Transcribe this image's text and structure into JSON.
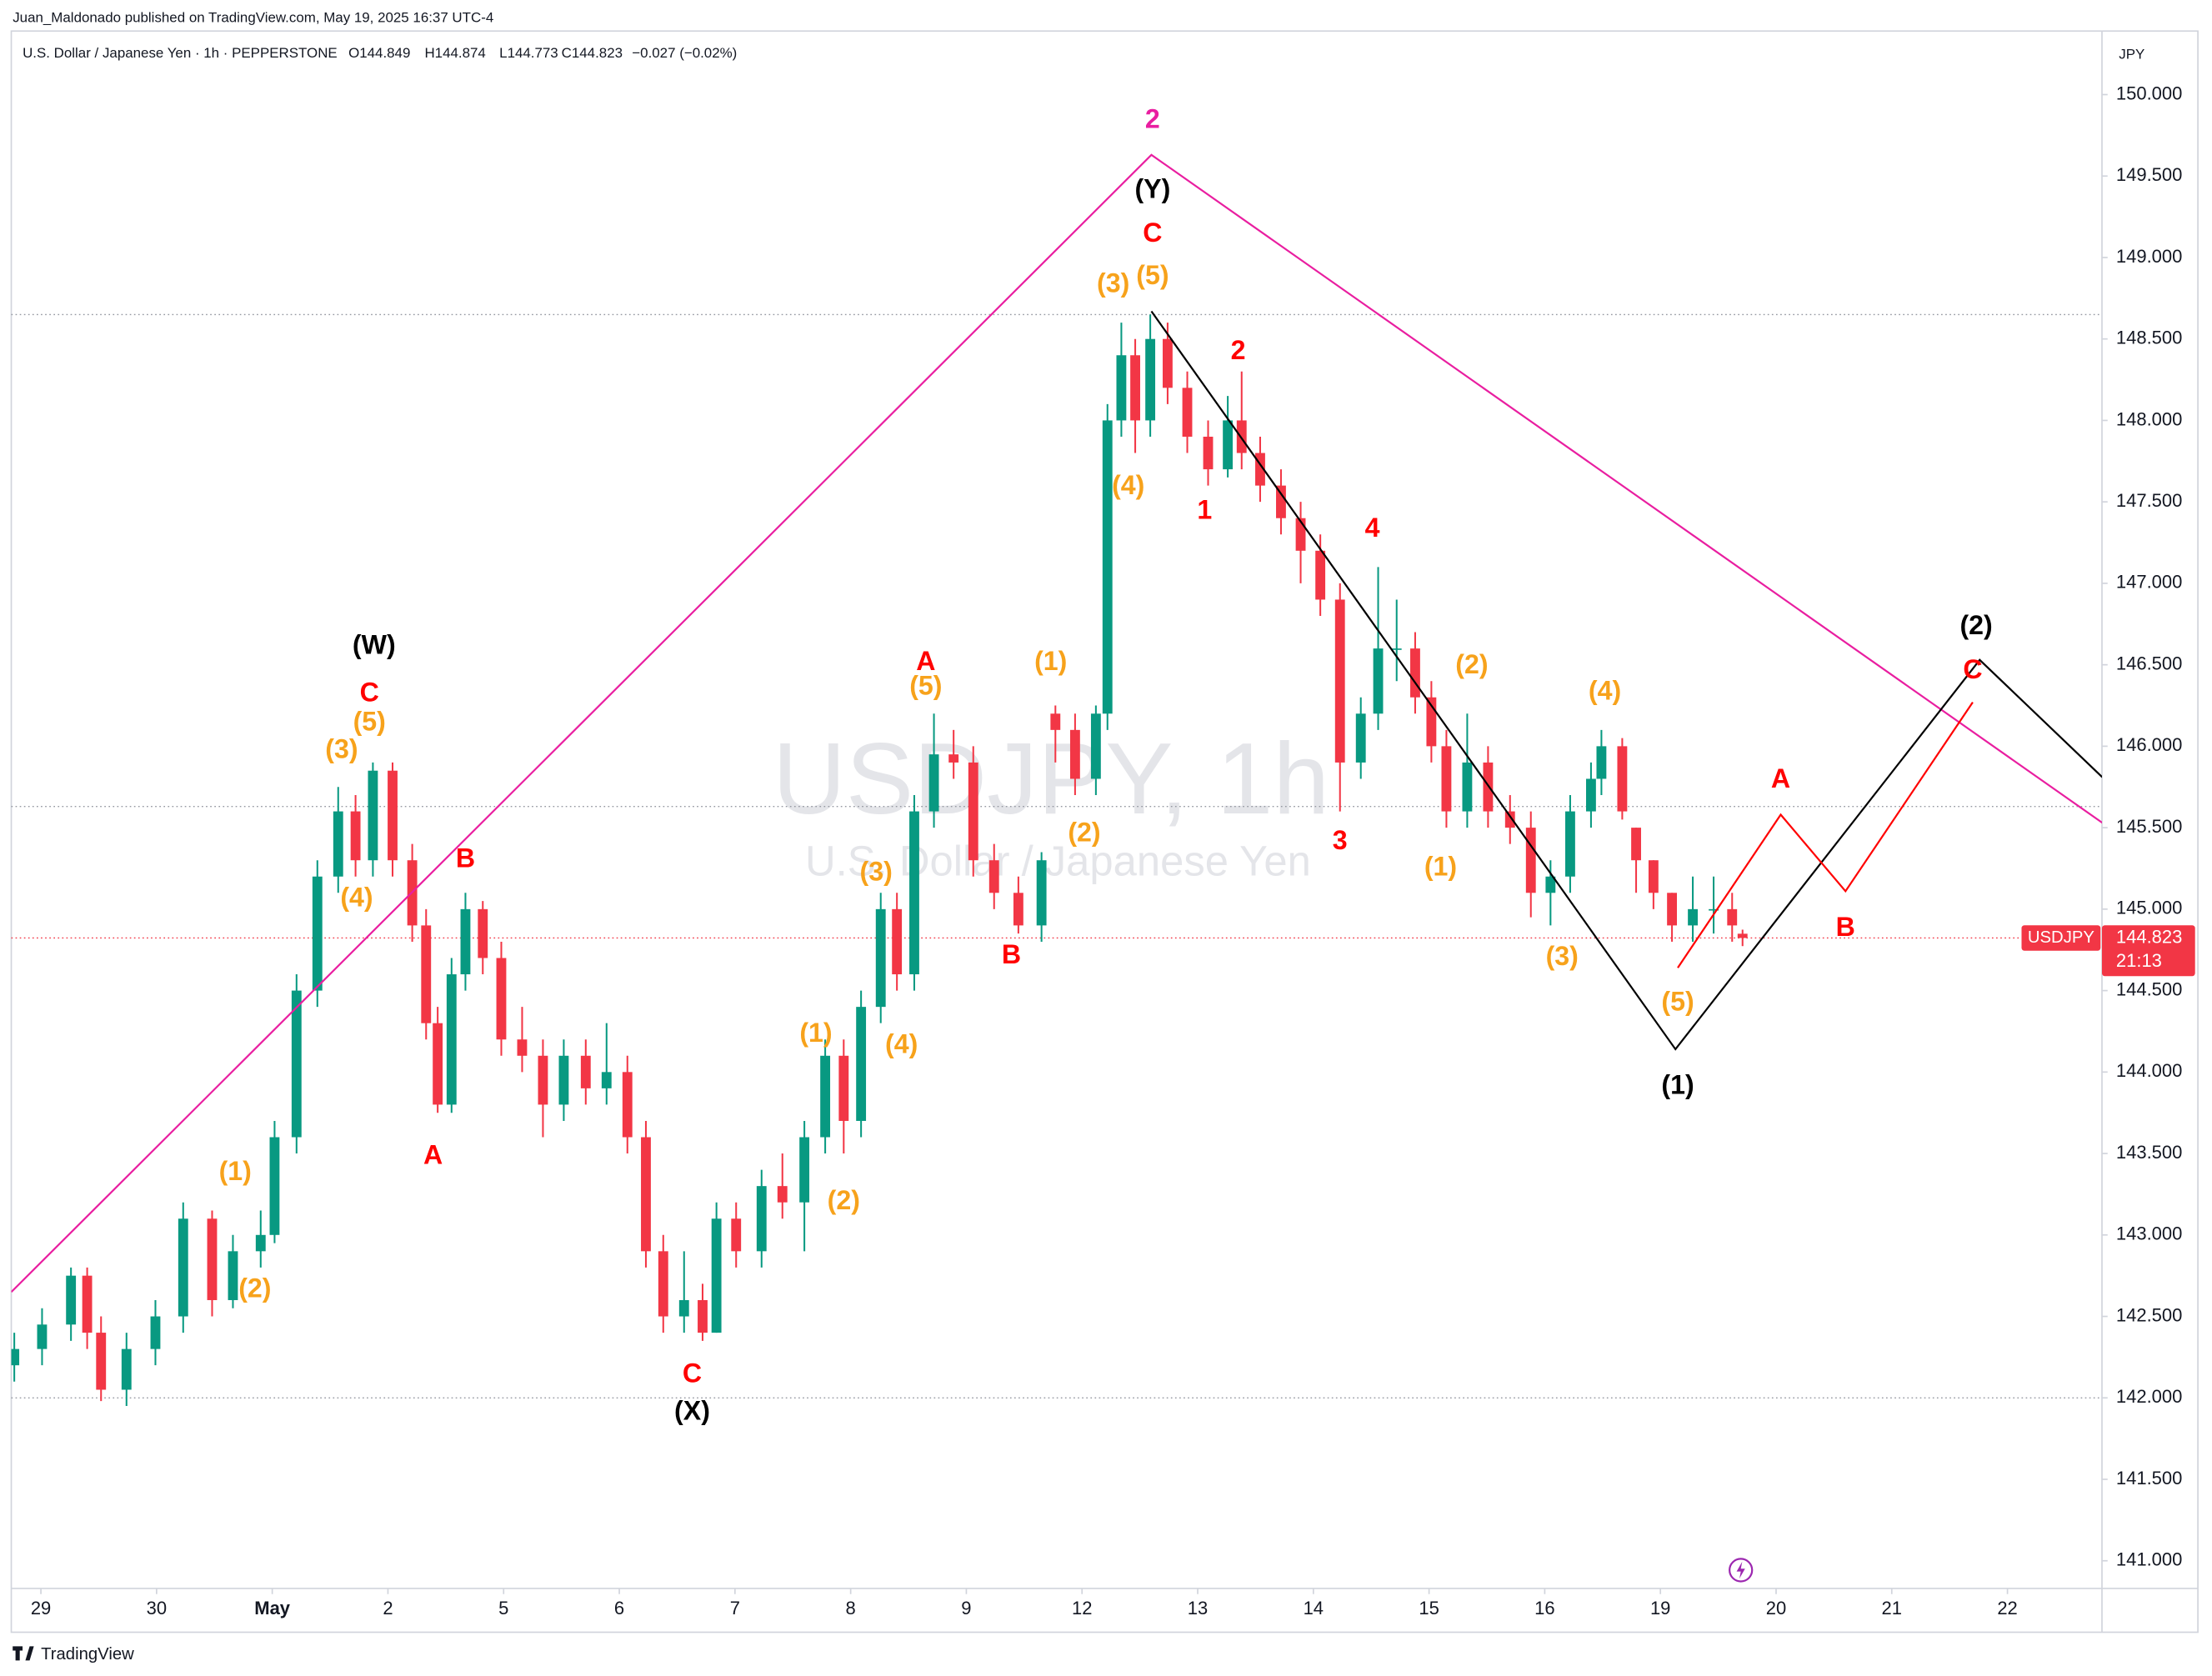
{
  "header": {
    "publisher": "Juan_Maldonado published on TradingView.com, May 19, 2025 16:37 UTC-4",
    "symbol": "U.S. Dollar / Japanese Yen · 1h · PEPPERSTONE",
    "open": "O144.849",
    "high": "H144.874",
    "low": "L144.773",
    "close": "C144.823",
    "change": "−0.027 (−0.02%)"
  },
  "watermark": {
    "title": "USDJPY, 1h",
    "subtitle": "U.S. Dollar / Japanese Yen"
  },
  "footer": {
    "brand": "TradingView"
  },
  "chart_data": {
    "type": "candlestick",
    "currency": "JPY",
    "up_color": "#089981",
    "down_color": "#f23645",
    "xlim": [
      -0.256,
      17.817
    ],
    "ylim": [
      140.83,
      150.39
    ],
    "xticks": [
      {
        "value": 0,
        "label": "29"
      },
      {
        "value": 1,
        "label": "30"
      },
      {
        "value": 2,
        "label": "May"
      },
      {
        "value": 3,
        "label": "2"
      },
      {
        "value": 4,
        "label": "5"
      },
      {
        "value": 5,
        "label": "6"
      },
      {
        "value": 6,
        "label": "7"
      },
      {
        "value": 7,
        "label": "8"
      },
      {
        "value": 8,
        "label": "9"
      },
      {
        "value": 9,
        "label": "12"
      },
      {
        "value": 10,
        "label": "13"
      },
      {
        "value": 11,
        "label": "14"
      },
      {
        "value": 12,
        "label": "15"
      },
      {
        "value": 13,
        "label": "16"
      },
      {
        "value": 14,
        "label": "19"
      },
      {
        "value": 15,
        "label": "20"
      },
      {
        "value": 16,
        "label": "21"
      },
      {
        "value": 17,
        "label": "22"
      }
    ],
    "yticks": [
      {
        "value": 141,
        "label": "141.000"
      },
      {
        "value": 141.5,
        "label": "141.500"
      },
      {
        "value": 142,
        "label": "142.000"
      },
      {
        "value": 142.5,
        "label": "142.500"
      },
      {
        "value": 143,
        "label": "143.000"
      },
      {
        "value": 143.5,
        "label": "143.500"
      },
      {
        "value": 144,
        "label": "144.000"
      },
      {
        "value": 144.5,
        "label": "144.500"
      },
      {
        "value": 145,
        "label": "145.000"
      },
      {
        "value": 145.5,
        "label": "145.500"
      },
      {
        "value": 146,
        "label": "146.000"
      },
      {
        "value": 146.5,
        "label": "146.500"
      },
      {
        "value": 147,
        "label": "147.000"
      },
      {
        "value": 147.5,
        "label": "147.500"
      },
      {
        "value": 148,
        "label": "148.000"
      },
      {
        "value": 148.5,
        "label": "148.500"
      },
      {
        "value": 149,
        "label": "149.000"
      },
      {
        "value": 149.5,
        "label": "149.500"
      },
      {
        "value": 150,
        "label": "150.000"
      }
    ],
    "x": [
      -0.23,
      0.01,
      0.26,
      0.4,
      0.52,
      0.74,
      0.99,
      1.23,
      1.48,
      1.66,
      1.9,
      2.02,
      2.21,
      2.39,
      2.57,
      2.72,
      2.87,
      3.04,
      3.21,
      3.33,
      3.43,
      3.55,
      3.67,
      3.82,
      3.98,
      4.16,
      4.34,
      4.52,
      4.71,
      4.89,
      5.07,
      5.23,
      5.38,
      5.56,
      5.72,
      5.84,
      6.01,
      6.23,
      6.41,
      6.6,
      6.78,
      6.94,
      7.09,
      7.26,
      7.4,
      7.55,
      7.72,
      7.89,
      8.06,
      8.24,
      8.45,
      8.65,
      8.77,
      8.94,
      9.12,
      9.22,
      9.34,
      9.46,
      9.59,
      9.74,
      9.91,
      10.09,
      10.26,
      10.38,
      10.54,
      10.72,
      10.89,
      11.06,
      11.23,
      11.41,
      11.56,
      11.72,
      11.88,
      12.02,
      12.15,
      12.33,
      12.51,
      12.7,
      12.88,
      13.05,
      13.22,
      13.4,
      13.49,
      13.67,
      13.79,
      13.94,
      14.1,
      14.28,
      14.46,
      14.62,
      14.71
    ],
    "ohlc": [
      [
        142.2,
        142.4,
        142.1,
        142.3
      ],
      [
        142.3,
        142.55,
        142.2,
        142.45
      ],
      [
        142.45,
        142.8,
        142.35,
        142.75
      ],
      [
        142.75,
        142.8,
        142.3,
        142.4
      ],
      [
        142.4,
        142.5,
        141.98,
        142.05
      ],
      [
        142.05,
        142.4,
        141.95,
        142.3
      ],
      [
        142.3,
        142.6,
        142.2,
        142.5
      ],
      [
        142.5,
        143.2,
        142.4,
        143.1
      ],
      [
        143.1,
        143.15,
        142.5,
        142.6
      ],
      [
        142.6,
        143.0,
        142.55,
        142.9
      ],
      [
        142.9,
        143.15,
        142.8,
        143.0
      ],
      [
        143.0,
        143.7,
        142.95,
        143.6
      ],
      [
        143.6,
        144.6,
        143.5,
        144.5
      ],
      [
        144.5,
        145.3,
        144.4,
        145.2
      ],
      [
        145.2,
        145.75,
        145.1,
        145.6
      ],
      [
        145.6,
        145.7,
        145.2,
        145.3
      ],
      [
        145.3,
        145.9,
        145.2,
        145.85
      ],
      [
        145.85,
        145.9,
        145.2,
        145.3
      ],
      [
        145.3,
        145.4,
        144.8,
        144.9
      ],
      [
        144.9,
        145.0,
        144.2,
        144.3
      ],
      [
        144.3,
        144.4,
        143.75,
        143.8
      ],
      [
        143.8,
        144.7,
        143.75,
        144.6
      ],
      [
        144.6,
        145.1,
        144.5,
        145.0
      ],
      [
        145.0,
        145.05,
        144.6,
        144.7
      ],
      [
        144.7,
        144.8,
        144.1,
        144.2
      ],
      [
        144.2,
        144.4,
        144.0,
        144.1
      ],
      [
        144.1,
        144.2,
        143.6,
        143.8
      ],
      [
        143.8,
        144.2,
        143.7,
        144.1
      ],
      [
        144.1,
        144.2,
        143.8,
        143.9
      ],
      [
        143.9,
        144.3,
        143.8,
        144.0
      ],
      [
        144.0,
        144.1,
        143.5,
        143.6
      ],
      [
        143.6,
        143.7,
        142.8,
        142.9
      ],
      [
        142.9,
        143.0,
        142.4,
        142.5
      ],
      [
        142.5,
        142.9,
        142.4,
        142.6
      ],
      [
        142.6,
        142.7,
        142.35,
        142.4
      ],
      [
        142.4,
        143.2,
        142.4,
        143.1
      ],
      [
        143.1,
        143.2,
        142.8,
        142.9
      ],
      [
        142.9,
        143.4,
        142.8,
        143.3
      ],
      [
        143.3,
        143.5,
        143.1,
        143.2
      ],
      [
        143.2,
        143.7,
        142.9,
        143.6
      ],
      [
        143.6,
        144.2,
        143.5,
        144.1
      ],
      [
        144.1,
        144.2,
        143.5,
        143.7
      ],
      [
        143.7,
        144.5,
        143.6,
        144.4
      ],
      [
        144.4,
        145.1,
        144.3,
        145.0
      ],
      [
        145.0,
        145.1,
        144.5,
        144.6
      ],
      [
        144.6,
        145.7,
        144.5,
        145.6
      ],
      [
        145.6,
        146.2,
        145.5,
        145.95
      ],
      [
        145.95,
        146.1,
        145.8,
        145.9
      ],
      [
        145.9,
        146.0,
        145.2,
        145.3
      ],
      [
        145.3,
        145.4,
        145.0,
        145.1
      ],
      [
        145.1,
        145.2,
        144.85,
        144.9
      ],
      [
        144.9,
        145.35,
        144.8,
        145.3
      ],
      [
        146.2,
        146.25,
        145.9,
        146.1
      ],
      [
        146.1,
        146.2,
        145.7,
        145.8
      ],
      [
        145.8,
        146.25,
        145.7,
        146.2
      ],
      [
        146.2,
        148.1,
        146.1,
        148.0
      ],
      [
        148.0,
        148.6,
        147.9,
        148.4
      ],
      [
        148.4,
        148.5,
        147.8,
        148.0
      ],
      [
        148.0,
        148.65,
        147.9,
        148.5
      ],
      [
        148.5,
        148.6,
        148.1,
        148.2
      ],
      [
        148.2,
        148.3,
        147.8,
        147.9
      ],
      [
        147.9,
        148.0,
        147.6,
        147.7
      ],
      [
        147.7,
        148.15,
        147.65,
        148.0
      ],
      [
        148.0,
        148.3,
        147.7,
        147.8
      ],
      [
        147.8,
        147.9,
        147.5,
        147.6
      ],
      [
        147.6,
        147.7,
        147.3,
        147.4
      ],
      [
        147.4,
        147.5,
        147.0,
        147.2
      ],
      [
        147.2,
        147.3,
        146.8,
        146.9
      ],
      [
        146.9,
        147.0,
        145.6,
        145.9
      ],
      [
        145.9,
        146.3,
        145.8,
        146.2
      ],
      [
        146.2,
        147.1,
        146.1,
        146.6
      ],
      [
        146.6,
        146.9,
        146.4,
        146.6
      ],
      [
        146.6,
        146.7,
        146.2,
        146.3
      ],
      [
        146.3,
        146.4,
        145.9,
        146.0
      ],
      [
        146.0,
        146.1,
        145.5,
        145.6
      ],
      [
        145.6,
        146.2,
        145.5,
        145.9
      ],
      [
        145.9,
        146.0,
        145.5,
        145.6
      ],
      [
        145.6,
        145.7,
        145.4,
        145.5
      ],
      [
        145.5,
        145.6,
        144.95,
        145.1
      ],
      [
        145.1,
        145.3,
        144.9,
        145.2
      ],
      [
        145.2,
        145.7,
        145.1,
        145.6
      ],
      [
        145.6,
        145.9,
        145.5,
        145.8
      ],
      [
        145.8,
        146.1,
        145.7,
        146.0
      ],
      [
        146.0,
        146.05,
        145.55,
        145.6
      ],
      [
        145.5,
        145.5,
        145.1,
        145.3
      ],
      [
        145.3,
        145.3,
        145.0,
        145.1
      ],
      [
        145.1,
        145.1,
        144.8,
        144.9
      ],
      [
        144.9,
        145.2,
        144.8,
        145.0
      ],
      [
        145.0,
        145.2,
        144.85,
        145.0
      ],
      [
        145.0,
        145.1,
        144.8,
        144.9
      ],
      [
        144.849,
        144.874,
        144.773,
        144.823
      ]
    ],
    "hlines": [
      148.65,
      145.63,
      142.0
    ],
    "last_price": 144.823,
    "symbol_tag": "USDJPY",
    "countdown": "21:13",
    "last_color": "#f23645",
    "drawings": [
      {
        "color": "#e91ea0",
        "x": [
          -0.256,
          9.6,
          17.82
        ],
        "y": [
          142.65,
          149.63,
          145.53
        ]
      },
      {
        "color": "#000000",
        "x": [
          9.6,
          14.13,
          16.76,
          17.82
        ],
        "y": [
          148.67,
          144.14,
          146.53,
          145.81
        ]
      },
      {
        "color": "#ff0000",
        "x": [
          14.15,
          15.04,
          15.6,
          16.7
        ],
        "y": [
          144.64,
          145.58,
          145.11,
          146.27
        ]
      }
    ],
    "annotations": [
      {
        "text": "2",
        "x": 9.61,
        "y": 149.84,
        "color": "#e91ea0"
      },
      {
        "text": "(Y)",
        "x": 9.61,
        "y": 149.41,
        "color": "#000000"
      },
      {
        "text": "C",
        "x": 9.61,
        "y": 149.14,
        "color": "#ff0000"
      },
      {
        "text": "(3)",
        "x": 9.27,
        "y": 148.83,
        "color": "#f7a21b"
      },
      {
        "text": "(5)",
        "x": 9.61,
        "y": 148.88,
        "color": "#f7a21b"
      },
      {
        "text": "2",
        "x": 10.35,
        "y": 148.42,
        "color": "#ff0000"
      },
      {
        "text": "1",
        "x": 10.06,
        "y": 147.44,
        "color": "#ff0000"
      },
      {
        "text": "(4)",
        "x": 9.4,
        "y": 147.59,
        "color": "#f7a21b"
      },
      {
        "text": "4",
        "x": 11.51,
        "y": 147.33,
        "color": "#ff0000"
      },
      {
        "text": "3",
        "x": 11.23,
        "y": 145.41,
        "color": "#ff0000"
      },
      {
        "text": "(2)",
        "x": 12.37,
        "y": 146.49,
        "color": "#f7a21b"
      },
      {
        "text": "(1)",
        "x": 12.1,
        "y": 145.25,
        "color": "#f7a21b"
      },
      {
        "text": "(4)",
        "x": 13.52,
        "y": 146.33,
        "color": "#f7a21b"
      },
      {
        "text": "(3)",
        "x": 13.15,
        "y": 144.7,
        "color": "#f7a21b"
      },
      {
        "text": "(5)",
        "x": 14.15,
        "y": 144.42,
        "color": "#f7a21b"
      },
      {
        "text": "(1)",
        "x": 14.15,
        "y": 143.91,
        "color": "#000000"
      },
      {
        "text": "(2)",
        "x": 16.73,
        "y": 146.73,
        "color": "#000000"
      },
      {
        "text": "C",
        "x": 16.7,
        "y": 146.46,
        "color": "#ff0000"
      },
      {
        "text": "A",
        "x": 15.04,
        "y": 145.79,
        "color": "#ff0000"
      },
      {
        "text": "B",
        "x": 15.6,
        "y": 144.88,
        "color": "#ff0000"
      },
      {
        "text": "(1)",
        "x": 8.73,
        "y": 146.51,
        "color": "#f7a21b"
      },
      {
        "text": "(2)",
        "x": 9.02,
        "y": 145.46,
        "color": "#f7a21b"
      },
      {
        "text": "A",
        "x": 7.65,
        "y": 146.51,
        "color": "#ff0000"
      },
      {
        "text": "(5)",
        "x": 7.65,
        "y": 146.36,
        "color": "#f7a21b"
      },
      {
        "text": "B",
        "x": 8.39,
        "y": 144.71,
        "color": "#ff0000"
      },
      {
        "text": "(3)",
        "x": 7.22,
        "y": 145.22,
        "color": "#f7a21b"
      },
      {
        "text": "(4)",
        "x": 7.44,
        "y": 144.16,
        "color": "#f7a21b"
      },
      {
        "text": "(1)",
        "x": 6.7,
        "y": 144.23,
        "color": "#f7a21b"
      },
      {
        "text": "(2)",
        "x": 6.94,
        "y": 143.2,
        "color": "#f7a21b"
      },
      {
        "text": "C",
        "x": 5.63,
        "y": 142.14,
        "color": "#ff0000"
      },
      {
        "text": "(X)",
        "x": 5.63,
        "y": 141.91,
        "color": "#000000"
      },
      {
        "text": "B",
        "x": 3.67,
        "y": 145.3,
        "color": "#ff0000"
      },
      {
        "text": "A",
        "x": 3.39,
        "y": 143.48,
        "color": "#ff0000"
      },
      {
        "text": "(W)",
        "x": 2.88,
        "y": 146.61,
        "color": "#000000"
      },
      {
        "text": "C",
        "x": 2.84,
        "y": 146.32,
        "color": "#ff0000"
      },
      {
        "text": "(5)",
        "x": 2.84,
        "y": 146.14,
        "color": "#f7a21b"
      },
      {
        "text": "(3)",
        "x": 2.6,
        "y": 145.97,
        "color": "#f7a21b"
      },
      {
        "text": "(4)",
        "x": 2.73,
        "y": 145.06,
        "color": "#f7a21b"
      },
      {
        "text": "(1)",
        "x": 1.68,
        "y": 143.38,
        "color": "#f7a21b"
      },
      {
        "text": "(2)",
        "x": 1.85,
        "y": 142.66,
        "color": "#f7a21b"
      }
    ]
  }
}
